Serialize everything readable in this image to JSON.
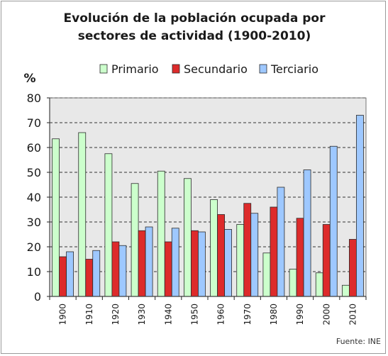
{
  "chart_data": {
    "type": "bar",
    "title_line1": "Evolución de la población ocupada por",
    "title_line2": "sectores de actividad (1900-2010)",
    "ylabel": "%",
    "source": "Fuente: INE",
    "categories": [
      "1900",
      "1910",
      "1920",
      "1930",
      "1940",
      "1950",
      "1960",
      "1970",
      "1980",
      "1990",
      "2000",
      "2010"
    ],
    "ylim": [
      0,
      80
    ],
    "yticks": [
      0,
      10,
      20,
      30,
      40,
      50,
      60,
      70,
      80
    ],
    "grid": true,
    "legend_position": "top",
    "series": [
      {
        "name": "Primario",
        "color": "#ccffcc",
        "values": [
          63.5,
          66,
          57.5,
          45.5,
          50.5,
          47.5,
          39,
          29,
          17.5,
          11,
          9.5,
          4.5
        ]
      },
      {
        "name": "Secundario",
        "color": "#dd2b2b",
        "values": [
          16,
          15,
          22,
          26.5,
          22,
          26.5,
          33,
          37.5,
          36,
          31.5,
          29,
          23
        ]
      },
      {
        "name": "Terciario",
        "color": "#9ec8ff",
        "values": [
          18,
          18.5,
          20.5,
          28,
          27.5,
          26,
          27,
          33.5,
          44,
          51,
          60.5,
          73
        ]
      }
    ]
  }
}
